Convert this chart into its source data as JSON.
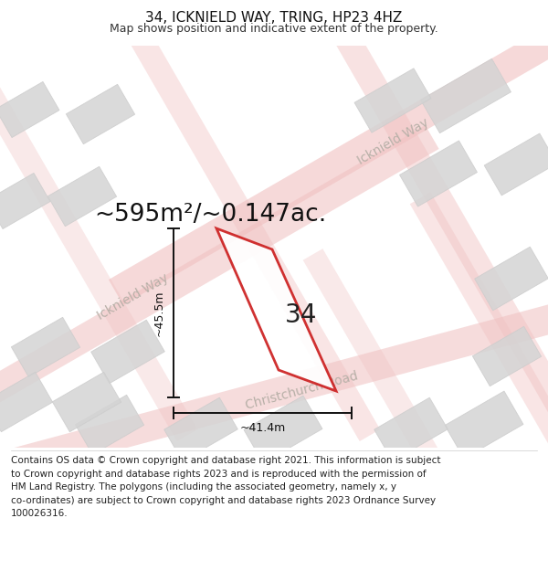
{
  "title": "34, ICKNIELD WAY, TRING, HP23 4HZ",
  "subtitle": "Map shows position and indicative extent of the property.",
  "area_text": "~595m²/~0.147ac.",
  "label_34": "34",
  "dim_height": "~45.5m",
  "dim_width": "~41.4m",
  "footer_line1": "Contains OS data © Crown copyright and database right 2021. This information is subject",
  "footer_line2": "to Crown copyright and database rights 2023 and is reproduced with the permission of",
  "footer_line3": "HM Land Registry. The polygons (including the associated geometry, namely x, y",
  "footer_line4": "co-ordinates) are subject to Crown copyright and database rights 2023 Ordnance Survey",
  "footer_line5": "100026316.",
  "bg_color": "#f5f4f2",
  "road_color": "#f0c0c0",
  "block_color": "#d4d4d4",
  "block_edge_color": "#cccccc",
  "red_outline": "#cc2020",
  "title_fontsize": 11,
  "subtitle_fontsize": 9,
  "area_fontsize": 19,
  "label_fontsize": 20,
  "footer_fontsize": 7.5,
  "road_label_color": "#b8b0a8",
  "road_label_fontsize": 10,
  "dim_fontsize": 9
}
